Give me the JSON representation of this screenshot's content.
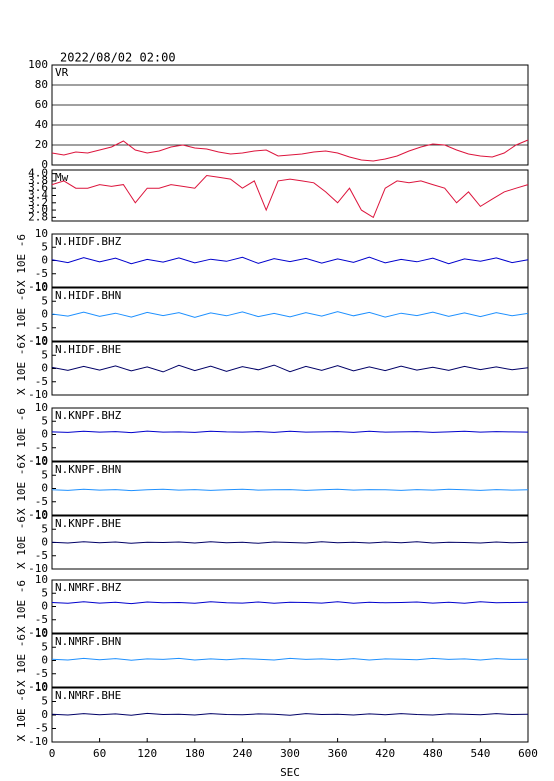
{
  "chart_data": [
    {
      "type": "line",
      "title": "2022/08/02 02:00",
      "label": "VR",
      "color": "#dc143c",
      "grid": true,
      "x": [
        0,
        15,
        30,
        45,
        60,
        75,
        90,
        105,
        120,
        135,
        150,
        165,
        180,
        195,
        210,
        225,
        240,
        255,
        270,
        285,
        300,
        315,
        330,
        345,
        360,
        375,
        390,
        405,
        420,
        435,
        450,
        465,
        480,
        495,
        510,
        525,
        540,
        555,
        570,
        585,
        600
      ],
      "values": [
        12,
        10,
        13,
        12,
        15,
        18,
        24,
        15,
        12,
        14,
        18,
        20,
        17,
        16,
        13,
        11,
        12,
        14,
        15,
        9,
        10,
        11,
        13,
        14,
        12,
        8,
        5,
        4,
        6,
        9,
        14,
        18,
        21,
        20,
        15,
        11,
        9,
        8,
        12,
        20,
        25
      ],
      "xlim": [
        0,
        600
      ],
      "ylim": [
        0,
        100
      ],
      "yticks": [
        0,
        20,
        40,
        60,
        80,
        100
      ]
    },
    {
      "type": "line",
      "label": "Mw",
      "color": "#dc143c",
      "x": [
        0,
        15,
        30,
        45,
        60,
        75,
        90,
        105,
        120,
        135,
        150,
        165,
        180,
        195,
        210,
        225,
        240,
        255,
        270,
        285,
        300,
        315,
        330,
        345,
        360,
        375,
        390,
        405,
        420,
        435,
        450,
        465,
        480,
        495,
        510,
        525,
        540,
        555,
        570,
        585,
        600
      ],
      "values": [
        3.7,
        3.8,
        3.6,
        3.6,
        3.7,
        3.65,
        3.7,
        3.2,
        3.6,
        3.6,
        3.7,
        3.65,
        3.6,
        3.95,
        3.9,
        3.85,
        3.6,
        3.8,
        3.0,
        3.8,
        3.85,
        3.8,
        3.75,
        3.5,
        3.2,
        3.6,
        3.0,
        2.8,
        3.6,
        3.8,
        3.75,
        3.8,
        3.7,
        3.6,
        3.2,
        3.5,
        3.1,
        3.3,
        3.5,
        3.6,
        3.7
      ],
      "xlim": [
        0,
        600
      ],
      "ylim": [
        2.7,
        4.1
      ],
      "yticks": [
        2.8,
        {
          "value": 3,
          "label": "3.0"
        },
        3.2,
        3.4,
        3.6,
        3.8,
        {
          "value": 4,
          "label": "4.0"
        }
      ]
    },
    {
      "type": "line",
      "label": "N.HIDF.BHZ",
      "ylabel": "X 10E -6",
      "color": "#0000cc",
      "x": [
        0,
        20,
        40,
        60,
        80,
        100,
        120,
        140,
        160,
        180,
        200,
        220,
        240,
        260,
        280,
        300,
        320,
        340,
        360,
        380,
        400,
        420,
        440,
        460,
        480,
        500,
        520,
        540,
        560,
        580,
        600
      ],
      "values": [
        0.3,
        -0.8,
        1.1,
        -0.5,
        0.9,
        -1.2,
        0.4,
        -0.6,
        1.0,
        -0.9,
        0.5,
        -0.3,
        1.2,
        -1.1,
        0.7,
        -0.4,
        0.8,
        -1.0,
        0.6,
        -0.7,
        1.3,
        -0.9,
        0.4,
        -0.5,
        0.9,
        -1.2,
        0.6,
        -0.3,
        1.0,
        -0.8,
        0.3
      ],
      "xlim": [
        0,
        600
      ],
      "ylim": [
        -10,
        10
      ],
      "yticks": [
        -10,
        -5,
        0,
        5,
        10
      ]
    },
    {
      "type": "line",
      "label": "N.HIDF.BHN",
      "ylabel": "X 10E -6",
      "color": "#1e90ff",
      "x": [
        0,
        20,
        40,
        60,
        80,
        100,
        120,
        140,
        160,
        180,
        200,
        220,
        240,
        260,
        280,
        300,
        320,
        340,
        360,
        380,
        400,
        420,
        440,
        460,
        480,
        500,
        520,
        540,
        560,
        580,
        600
      ],
      "values": [
        0.2,
        -0.6,
        0.9,
        -0.7,
        0.5,
        -1.0,
        0.8,
        -0.4,
        0.7,
        -1.1,
        0.6,
        -0.5,
        1.0,
        -0.8,
        0.4,
        -0.9,
        0.7,
        -0.6,
        1.1,
        -0.5,
        0.8,
        -1.0,
        0.5,
        -0.4,
        0.9,
        -0.7,
        0.6,
        -0.8,
        0.7,
        -0.5,
        0.4
      ],
      "xlim": [
        0,
        600
      ],
      "ylim": [
        -10,
        10
      ],
      "yticks": [
        -10,
        -5,
        0,
        5,
        10
      ]
    },
    {
      "type": "line",
      "label": "N.HIDF.BHE",
      "ylabel": "X 10E -6",
      "color": "#000066",
      "x": [
        0,
        20,
        40,
        60,
        80,
        100,
        120,
        140,
        160,
        180,
        200,
        220,
        240,
        260,
        280,
        300,
        320,
        340,
        360,
        380,
        400,
        420,
        440,
        460,
        480,
        500,
        520,
        540,
        560,
        580,
        600
      ],
      "values": [
        0.4,
        -0.7,
        0.8,
        -0.6,
        1.0,
        -0.9,
        0.6,
        -1.3,
        1.2,
        -0.8,
        0.9,
        -1.1,
        0.7,
        -0.5,
        1.3,
        -1.2,
        0.8,
        -0.7,
        1.1,
        -0.9,
        0.6,
        -0.8,
        0.9,
        -0.6,
        0.5,
        -0.7,
        0.8,
        -0.4,
        0.6,
        -0.5,
        0.3
      ],
      "xlim": [
        0,
        600
      ],
      "ylim": [
        -10,
        10
      ],
      "yticks": [
        -10,
        -5,
        0,
        5,
        10
      ]
    },
    {
      "type": "line",
      "label": "N.KNPF.BHZ",
      "ylabel": "X 10E -6",
      "color": "#0000cc",
      "x": [
        0,
        20,
        40,
        60,
        80,
        100,
        120,
        140,
        160,
        180,
        200,
        220,
        240,
        260,
        280,
        300,
        320,
        340,
        360,
        380,
        400,
        420,
        440,
        460,
        480,
        500,
        520,
        540,
        560,
        580,
        600
      ],
      "values": [
        1.0,
        0.8,
        1.2,
        0.9,
        1.1,
        0.7,
        1.3,
        0.9,
        1.0,
        0.8,
        1.2,
        1.0,
        0.9,
        1.1,
        0.8,
        1.2,
        0.9,
        1.0,
        1.1,
        0.8,
        1.2,
        0.9,
        1.0,
        1.1,
        0.8,
        1.0,
        1.2,
        0.9,
        1.1,
        1.0,
        0.9
      ],
      "xlim": [
        0,
        600
      ],
      "ylim": [
        -10,
        10
      ],
      "yticks": [
        -10,
        -5,
        0,
        5,
        10
      ]
    },
    {
      "type": "line",
      "label": "N.KNPF.BHN",
      "ylabel": "X 10E -6",
      "color": "#1e90ff",
      "x": [
        0,
        20,
        40,
        60,
        80,
        100,
        120,
        140,
        160,
        180,
        200,
        220,
        240,
        260,
        280,
        300,
        320,
        340,
        360,
        380,
        400,
        420,
        440,
        460,
        480,
        500,
        520,
        540,
        560,
        580,
        600
      ],
      "values": [
        -0.5,
        -0.7,
        -0.3,
        -0.6,
        -0.4,
        -0.8,
        -0.5,
        -0.3,
        -0.6,
        -0.4,
        -0.7,
        -0.5,
        -0.3,
        -0.6,
        -0.5,
        -0.4,
        -0.7,
        -0.5,
        -0.3,
        -0.6,
        -0.4,
        -0.5,
        -0.7,
        -0.4,
        -0.6,
        -0.3,
        -0.5,
        -0.7,
        -0.4,
        -0.6,
        -0.5
      ],
      "xlim": [
        0,
        600
      ],
      "ylim": [
        -10,
        10
      ],
      "yticks": [
        -10,
        -5,
        0,
        5,
        10
      ]
    },
    {
      "type": "line",
      "label": "N.KNPF.BHE",
      "ylabel": "X 10E -6",
      "color": "#000066",
      "x": [
        0,
        20,
        40,
        60,
        80,
        100,
        120,
        140,
        160,
        180,
        200,
        220,
        240,
        260,
        280,
        300,
        320,
        340,
        360,
        380,
        400,
        420,
        440,
        460,
        480,
        500,
        520,
        540,
        560,
        580,
        600
      ],
      "values": [
        0.1,
        -0.2,
        0.3,
        -0.1,
        0.2,
        -0.3,
        0.1,
        0.0,
        0.2,
        -0.2,
        0.3,
        -0.1,
        0.1,
        -0.3,
        0.2,
        0.0,
        -0.2,
        0.3,
        -0.1,
        0.1,
        -0.2,
        0.2,
        -0.1,
        0.3,
        -0.2,
        0.1,
        0.0,
        -0.2,
        0.2,
        -0.1,
        0.1
      ],
      "xlim": [
        0,
        600
      ],
      "ylim": [
        -10,
        10
      ],
      "yticks": [
        -10,
        -5,
        0,
        5,
        10
      ]
    },
    {
      "type": "line",
      "label": "N.NMRF.BHZ",
      "ylabel": "X 10E -6",
      "color": "#0000cc",
      "x": [
        0,
        20,
        40,
        60,
        80,
        100,
        120,
        140,
        160,
        180,
        200,
        220,
        240,
        260,
        280,
        300,
        320,
        340,
        360,
        380,
        400,
        420,
        440,
        460,
        480,
        500,
        520,
        540,
        560,
        580,
        600
      ],
      "values": [
        1.5,
        1.2,
        1.8,
        1.3,
        1.6,
        1.1,
        1.7,
        1.4,
        1.5,
        1.2,
        1.8,
        1.4,
        1.3,
        1.7,
        1.2,
        1.6,
        1.5,
        1.3,
        1.8,
        1.2,
        1.6,
        1.4,
        1.5,
        1.7,
        1.3,
        1.6,
        1.2,
        1.8,
        1.4,
        1.5,
        1.6
      ],
      "xlim": [
        0,
        600
      ],
      "ylim": [
        -10,
        10
      ],
      "yticks": [
        -10,
        -5,
        0,
        5,
        10
      ]
    },
    {
      "type": "line",
      "label": "N.NMRF.BHN",
      "ylabel": "X 10E -6",
      "color": "#1e90ff",
      "x": [
        0,
        20,
        40,
        60,
        80,
        100,
        120,
        140,
        160,
        180,
        200,
        220,
        240,
        260,
        280,
        300,
        320,
        340,
        360,
        380,
        400,
        420,
        440,
        460,
        480,
        500,
        520,
        540,
        560,
        580,
        600
      ],
      "values": [
        0.5,
        0.2,
        0.8,
        0.3,
        0.7,
        0.1,
        0.6,
        0.4,
        0.8,
        0.2,
        0.6,
        0.3,
        0.7,
        0.5,
        0.2,
        0.8,
        0.4,
        0.6,
        0.3,
        0.7,
        0.2,
        0.6,
        0.5,
        0.3,
        0.8,
        0.4,
        0.6,
        0.2,
        0.7,
        0.4,
        0.5
      ],
      "xlim": [
        0,
        600
      ],
      "ylim": [
        -10,
        10
      ],
      "yticks": [
        -10,
        -5,
        0,
        5,
        10
      ]
    },
    {
      "type": "line",
      "label": "N.NMRF.BHE",
      "ylabel": "X 10E -6",
      "color": "#000066",
      "x": [
        0,
        20,
        40,
        60,
        80,
        100,
        120,
        140,
        160,
        180,
        200,
        220,
        240,
        260,
        280,
        300,
        320,
        340,
        360,
        380,
        400,
        420,
        440,
        460,
        480,
        500,
        520,
        540,
        560,
        580,
        600
      ],
      "values": [
        0.3,
        0.0,
        0.5,
        0.1,
        0.4,
        -0.1,
        0.6,
        0.2,
        0.3,
        0.0,
        0.5,
        0.2,
        0.1,
        0.4,
        0.3,
        -0.1,
        0.5,
        0.2,
        0.3,
        0.0,
        0.4,
        0.1,
        0.5,
        0.2,
        0.0,
        0.4,
        0.3,
        0.1,
        0.5,
        0.2,
        0.3
      ],
      "xlim": [
        0,
        600
      ],
      "ylim": [
        -10,
        10
      ],
      "yticks": [
        -10,
        -5,
        0,
        5,
        10
      ],
      "xticks": [
        0,
        60,
        120,
        180,
        240,
        300,
        360,
        420,
        480,
        540,
        600
      ],
      "xlabel": "SEC"
    }
  ]
}
